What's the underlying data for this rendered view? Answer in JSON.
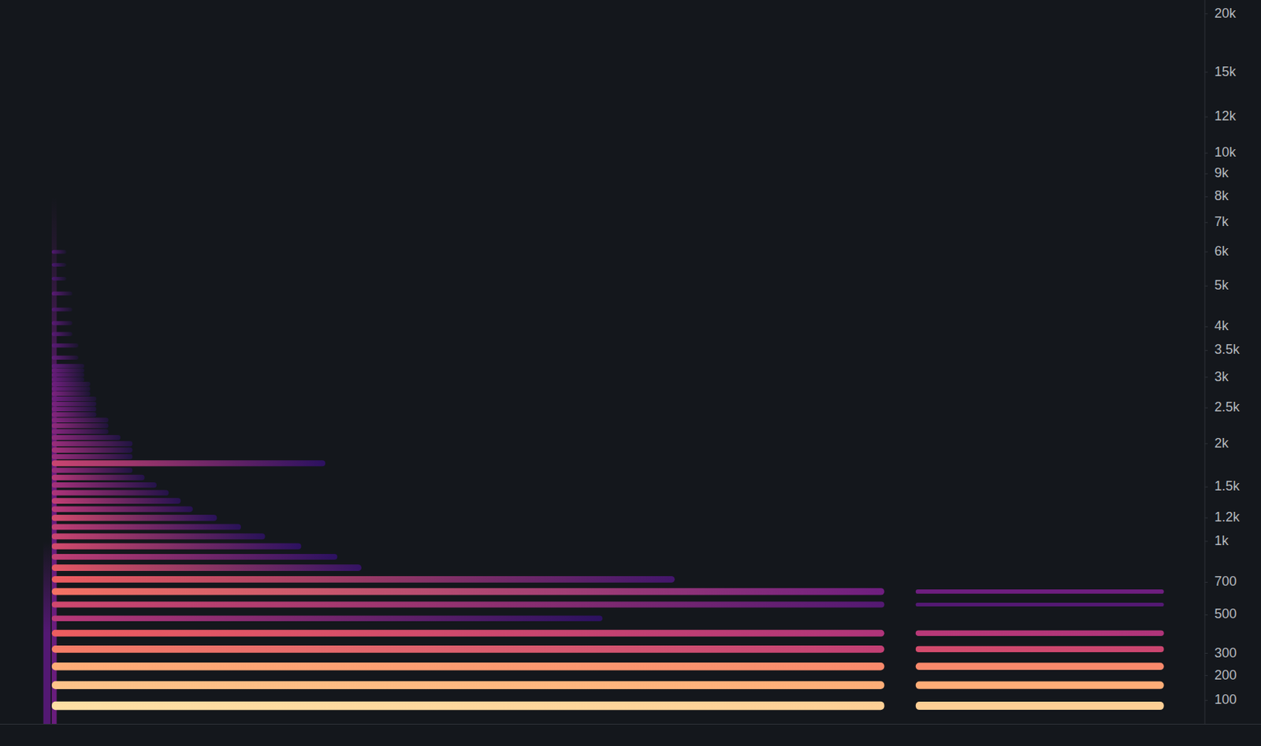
{
  "chart_data": {
    "type": "spectrogram",
    "ylim": [
      16,
      21400
    ],
    "yticks": [
      {
        "value": 20000,
        "label": "20k"
      },
      {
        "value": 15000,
        "label": "15k"
      },
      {
        "value": 12000,
        "label": "12k"
      },
      {
        "value": 10000,
        "label": "10k"
      },
      {
        "value": 9000,
        "label": "9k"
      },
      {
        "value": 8000,
        "label": "8k"
      },
      {
        "value": 7000,
        "label": "7k"
      },
      {
        "value": 6000,
        "label": "6k"
      },
      {
        "value": 5000,
        "label": "5k"
      },
      {
        "value": 4000,
        "label": "4k"
      },
      {
        "value": 3500,
        "label": "3.5k"
      },
      {
        "value": 3000,
        "label": "3k"
      },
      {
        "value": 2500,
        "label": "2.5k"
      },
      {
        "value": 2000,
        "label": "2k"
      },
      {
        "value": 1500,
        "label": "1.5k"
      },
      {
        "value": 1200,
        "label": "1.2k"
      },
      {
        "value": 1000,
        "label": "1k"
      },
      700,
      500,
      300,
      200,
      100
    ],
    "xlim": [
      0,
      100
    ],
    "tick_labels": "y",
    "grid": false,
    "zlim": [
      -90,
      0
    ],
    "partials": [
      {
        "frequency": 80,
        "segments": [
          {
            "start": 4.3,
            "end": 73.4,
            "from": -5,
            "to": -8
          },
          {
            "start": 76,
            "end": 96.6,
            "from": -8,
            "to": -8
          }
        ]
      },
      {
        "frequency": 160,
        "segments": [
          {
            "start": 4.3,
            "end": 73.4,
            "from": -10,
            "to": -14
          },
          {
            "start": 76,
            "end": 96.6,
            "from": -14,
            "to": -14
          }
        ]
      },
      {
        "frequency": 240,
        "segments": [
          {
            "start": 4.3,
            "end": 73.4,
            "from": -14,
            "to": -20
          },
          {
            "start": 76,
            "end": 96.6,
            "from": -20,
            "to": -20
          }
        ]
      },
      {
        "frequency": 320,
        "segments": [
          {
            "start": 4.3,
            "end": 73.4,
            "from": -22,
            "to": -38
          },
          {
            "start": 76,
            "end": 96.6,
            "from": -34,
            "to": -36
          }
        ]
      },
      {
        "frequency": 400,
        "segments": [
          {
            "start": 4.3,
            "end": 73.4,
            "from": -28,
            "to": -42
          },
          {
            "start": 76,
            "end": 96.6,
            "from": -40,
            "to": -42
          }
        ]
      },
      {
        "frequency": 480,
        "segments": [
          {
            "start": 4.3,
            "end": 50,
            "from": -40,
            "to": -72
          }
        ]
      },
      {
        "frequency": 560,
        "segments": [
          {
            "start": 4.3,
            "end": 73.4,
            "from": -35,
            "to": -62
          },
          {
            "start": 76,
            "end": 96.6,
            "from": -62,
            "to": -62
          }
        ]
      },
      {
        "frequency": 640,
        "segments": [
          {
            "start": 4.3,
            "end": 73.4,
            "from": -24,
            "to": -55
          },
          {
            "start": 76,
            "end": 96.6,
            "from": -55,
            "to": -55
          }
        ]
      },
      {
        "frequency": 720,
        "segments": [
          {
            "start": 4.3,
            "end": 56,
            "from": -28,
            "to": -66
          }
        ]
      },
      {
        "frequency": 800,
        "segments": [
          {
            "start": 4.3,
            "end": 30,
            "from": -30,
            "to": -70
          }
        ]
      },
      {
        "frequency": 880,
        "segments": [
          {
            "start": 4.3,
            "end": 28,
            "from": -38,
            "to": -72
          }
        ]
      },
      {
        "frequency": 960,
        "segments": [
          {
            "start": 4.3,
            "end": 25,
            "from": -34,
            "to": -72
          }
        ]
      },
      {
        "frequency": 1040,
        "segments": [
          {
            "start": 4.3,
            "end": 22,
            "from": -36,
            "to": -74
          }
        ]
      },
      {
        "frequency": 1120,
        "segments": [
          {
            "start": 4.3,
            "end": 20,
            "from": -38,
            "to": -74
          }
        ]
      },
      {
        "frequency": 1200,
        "segments": [
          {
            "start": 4.3,
            "end": 18,
            "from": -34,
            "to": -74
          }
        ]
      },
      {
        "frequency": 1280,
        "segments": [
          {
            "start": 4.3,
            "end": 16,
            "from": -40,
            "to": -76
          }
        ]
      },
      {
        "frequency": 1360,
        "segments": [
          {
            "start": 4.3,
            "end": 15,
            "from": -38,
            "to": -76
          }
        ]
      },
      {
        "frequency": 1440,
        "segments": [
          {
            "start": 4.3,
            "end": 14,
            "from": -42,
            "to": -78
          }
        ]
      },
      {
        "frequency": 1520,
        "segments": [
          {
            "start": 4.3,
            "end": 13,
            "from": -44,
            "to": -78
          }
        ]
      },
      {
        "frequency": 1600,
        "segments": [
          {
            "start": 4.3,
            "end": 12,
            "from": -40,
            "to": -78
          }
        ]
      },
      {
        "frequency": 1680,
        "segments": [
          {
            "start": 4.3,
            "end": 11,
            "from": -46,
            "to": -80
          }
        ]
      },
      {
        "frequency": 1760,
        "segments": [
          {
            "start": 4.3,
            "end": 27,
            "from": -36,
            "to": -72
          }
        ]
      },
      {
        "frequency": 1840,
        "segments": [
          {
            "start": 4.3,
            "end": 11,
            "from": -46,
            "to": -80
          }
        ]
      },
      {
        "frequency": 1920,
        "segments": [
          {
            "start": 4.3,
            "end": 11,
            "from": -44,
            "to": -80
          }
        ]
      },
      {
        "frequency": 2000,
        "segments": [
          {
            "start": 4.3,
            "end": 11,
            "from": -46,
            "to": -80
          }
        ]
      },
      {
        "frequency": 2080,
        "segments": [
          {
            "start": 4.3,
            "end": 10,
            "from": -48,
            "to": -80
          }
        ]
      },
      {
        "frequency": 2160,
        "segments": [
          {
            "start": 4.3,
            "end": 9,
            "from": -50,
            "to": -82
          }
        ]
      },
      {
        "frequency": 2240,
        "segments": [
          {
            "start": 4.3,
            "end": 9,
            "from": -48,
            "to": -82
          }
        ]
      },
      {
        "frequency": 2320,
        "segments": [
          {
            "start": 4.3,
            "end": 9,
            "from": -50,
            "to": -82
          }
        ]
      },
      {
        "frequency": 2400,
        "segments": [
          {
            "start": 4.3,
            "end": 8,
            "from": -50,
            "to": -82
          }
        ]
      },
      {
        "frequency": 2480,
        "segments": [
          {
            "start": 4.3,
            "end": 8,
            "from": -52,
            "to": -82
          }
        ]
      },
      {
        "frequency": 2560,
        "segments": [
          {
            "start": 4.3,
            "end": 8,
            "from": -52,
            "to": -82
          }
        ]
      },
      {
        "frequency": 2640,
        "segments": [
          {
            "start": 4.3,
            "end": 8,
            "from": -54,
            "to": -84
          }
        ]
      },
      {
        "frequency": 2720,
        "segments": [
          {
            "start": 4.3,
            "end": 7.5,
            "from": -52,
            "to": -84
          }
        ]
      },
      {
        "frequency": 2800,
        "segments": [
          {
            "start": 4.3,
            "end": 7.5,
            "from": -54,
            "to": -84
          }
        ]
      },
      {
        "frequency": 2880,
        "segments": [
          {
            "start": 4.3,
            "end": 7.5,
            "from": -54,
            "to": -84
          }
        ]
      },
      {
        "frequency": 2960,
        "segments": [
          {
            "start": 4.3,
            "end": 7,
            "from": -56,
            "to": -84
          }
        ]
      },
      {
        "frequency": 3040,
        "segments": [
          {
            "start": 4.3,
            "end": 7,
            "from": -56,
            "to": -84
          }
        ]
      },
      {
        "frequency": 3120,
        "segments": [
          {
            "start": 4.3,
            "end": 7,
            "from": -56,
            "to": -84
          }
        ]
      },
      {
        "frequency": 3200,
        "segments": [
          {
            "start": 4.3,
            "end": 7,
            "from": -58,
            "to": -84
          }
        ]
      },
      {
        "frequency": 3360,
        "segments": [
          {
            "start": 4.3,
            "end": 6.5,
            "from": -58,
            "to": -85
          }
        ]
      },
      {
        "frequency": 3600,
        "segments": [
          {
            "start": 4.3,
            "end": 6.5,
            "from": -60,
            "to": -85
          }
        ]
      },
      {
        "frequency": 3840,
        "segments": [
          {
            "start": 4.3,
            "end": 6,
            "from": -60,
            "to": -85
          }
        ]
      },
      {
        "frequency": 4080,
        "segments": [
          {
            "start": 4.3,
            "end": 6,
            "from": -60,
            "to": -85
          }
        ]
      },
      {
        "frequency": 4400,
        "segments": [
          {
            "start": 4.3,
            "end": 6,
            "from": -62,
            "to": -86
          }
        ]
      },
      {
        "frequency": 4800,
        "segments": [
          {
            "start": 4.3,
            "end": 6,
            "from": -60,
            "to": -86
          }
        ]
      },
      {
        "frequency": 5200,
        "segments": [
          {
            "start": 4.3,
            "end": 5.5,
            "from": -64,
            "to": -86
          }
        ]
      },
      {
        "frequency": 5600,
        "segments": [
          {
            "start": 4.3,
            "end": 5.5,
            "from": -64,
            "to": -86
          }
        ]
      },
      {
        "frequency": 6000,
        "segments": [
          {
            "start": 4.3,
            "end": 5.5,
            "from": -62,
            "to": -86
          }
        ]
      }
    ],
    "transients": [
      {
        "start": 3.6,
        "end": 4.2,
        "low": 16,
        "high": 1000,
        "level": -62
      },
      {
        "start": 4.3,
        "end": 4.7,
        "low": 16,
        "high": 8000,
        "level": -56
      }
    ]
  }
}
